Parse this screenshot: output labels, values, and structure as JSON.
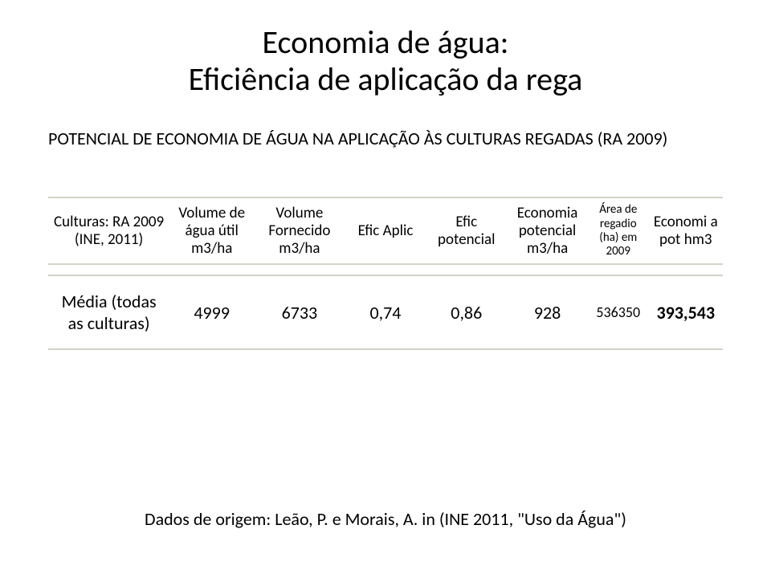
{
  "title": {
    "line1": "Economia de água:",
    "line2": "Eficiência de aplicação da rega"
  },
  "subtitle": "POTENCIAL DE ECONOMIA DE ÁGUA NA APLICAÇÃO ÀS CULTURAS REGADAS (RA 2009)",
  "table": {
    "headers": [
      "Culturas: RA 2009 (INE, 2011)",
      "Volume de água útil m3/ha",
      "Volume Fornecido m3/ha",
      "Efic Aplic",
      "Efic potencial",
      "Economia potencial m3/ha",
      "Área de regadio (ha) em 2009",
      "Economi a pot hm3"
    ],
    "row": {
      "label": "Média (todas as culturas)",
      "c1": "4999",
      "c2": "6733",
      "c3": "0,74",
      "c4": "0,86",
      "c5": "928",
      "c6": "536350",
      "c7": "393,543"
    }
  },
  "footer": "Dados de origem: Leão, P. e Morais, A. in (INE 2011, \"Uso da Água\")",
  "colors": {
    "text": "#000000",
    "background": "#ffffff",
    "rule": "#cfd5c7"
  },
  "fonts": {
    "family": "Calibri",
    "title_size_pt": 40,
    "subtitle_size_pt": 22,
    "header_size_pt": 19,
    "header_small_size_pt": 15,
    "cell_size_pt": 22,
    "cell_small_size_pt": 18,
    "footer_size_pt": 22
  }
}
